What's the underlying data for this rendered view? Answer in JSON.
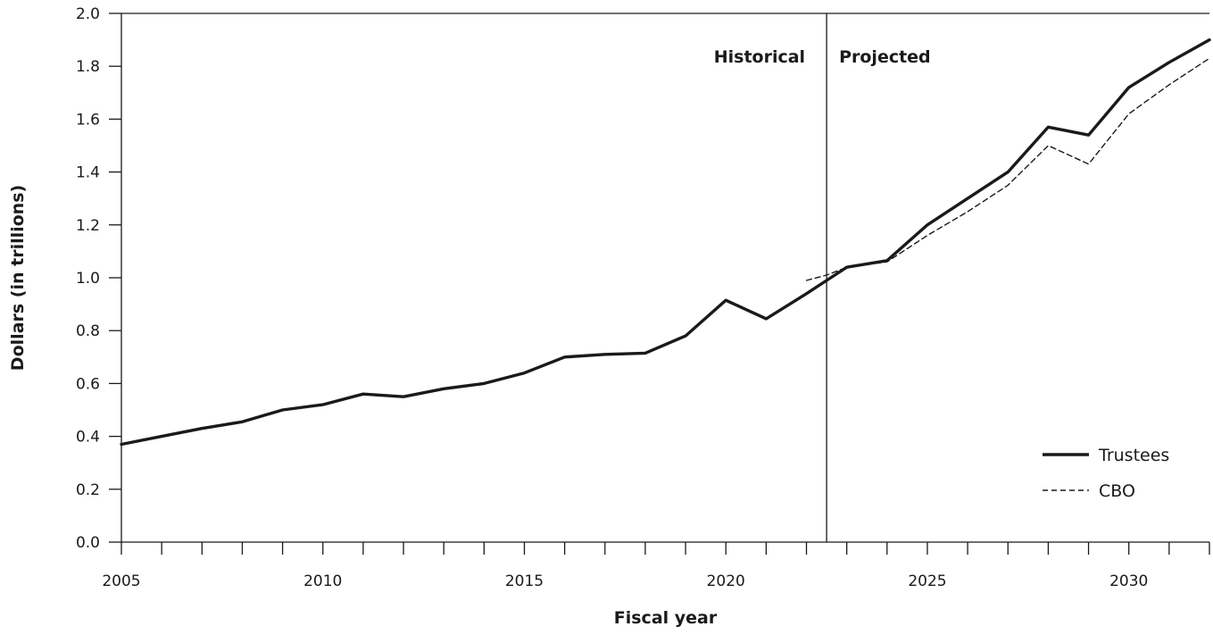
{
  "chart_data": {
    "type": "line",
    "xlabel": "Fiscal year",
    "ylabel": "Dollars (in trillions)",
    "xlim": [
      2005,
      2032
    ],
    "ylim": [
      0.0,
      2.0
    ],
    "x_ticks": [
      2005,
      2010,
      2015,
      2020,
      2025,
      2030
    ],
    "x_minor_step": 1,
    "y_ticks": [
      "0.0",
      "0.2",
      "0.4",
      "0.6",
      "0.8",
      "1.0",
      "1.2",
      "1.4",
      "1.6",
      "1.8",
      "2.0"
    ],
    "divider_x": 2022.5,
    "region_labels": {
      "left": "Historical",
      "right": "Projected"
    },
    "legend_position": "bottom-right",
    "grid": false,
    "series": [
      {
        "name": "Trustees",
        "style": "solid",
        "color": "#1a1a1a",
        "points": [
          [
            2005,
            0.37
          ],
          [
            2006,
            0.4
          ],
          [
            2007,
            0.43
          ],
          [
            2008,
            0.455
          ],
          [
            2009,
            0.5
          ],
          [
            2010,
            0.52
          ],
          [
            2011,
            0.56
          ],
          [
            2012,
            0.55
          ],
          [
            2013,
            0.58
          ],
          [
            2014,
            0.6
          ],
          [
            2015,
            0.64
          ],
          [
            2016,
            0.7
          ],
          [
            2017,
            0.71
          ],
          [
            2018,
            0.715
          ],
          [
            2019,
            0.78
          ],
          [
            2020,
            0.915
          ],
          [
            2021,
            0.845
          ],
          [
            2022,
            0.94
          ],
          [
            2022.5,
            0.99
          ],
          [
            2023,
            1.04
          ],
          [
            2024,
            1.065
          ],
          [
            2025,
            1.2
          ],
          [
            2026,
            1.3
          ],
          [
            2027,
            1.4
          ],
          [
            2028,
            1.57
          ],
          [
            2029,
            1.54
          ],
          [
            2030,
            1.72
          ],
          [
            2031,
            1.815
          ],
          [
            2032,
            1.9
          ]
        ]
      },
      {
        "name": "CBO",
        "style": "dashed",
        "color": "#1a1a1a",
        "points": [
          [
            2022,
            0.99
          ],
          [
            2022.5,
            1.01
          ],
          [
            2023,
            1.04
          ],
          [
            2024,
            1.06
          ],
          [
            2025,
            1.16
          ],
          [
            2026,
            1.25
          ],
          [
            2027,
            1.35
          ],
          [
            2028,
            1.5
          ],
          [
            2029,
            1.43
          ],
          [
            2030,
            1.62
          ],
          [
            2031,
            1.73
          ],
          [
            2032,
            1.83
          ]
        ]
      }
    ]
  }
}
